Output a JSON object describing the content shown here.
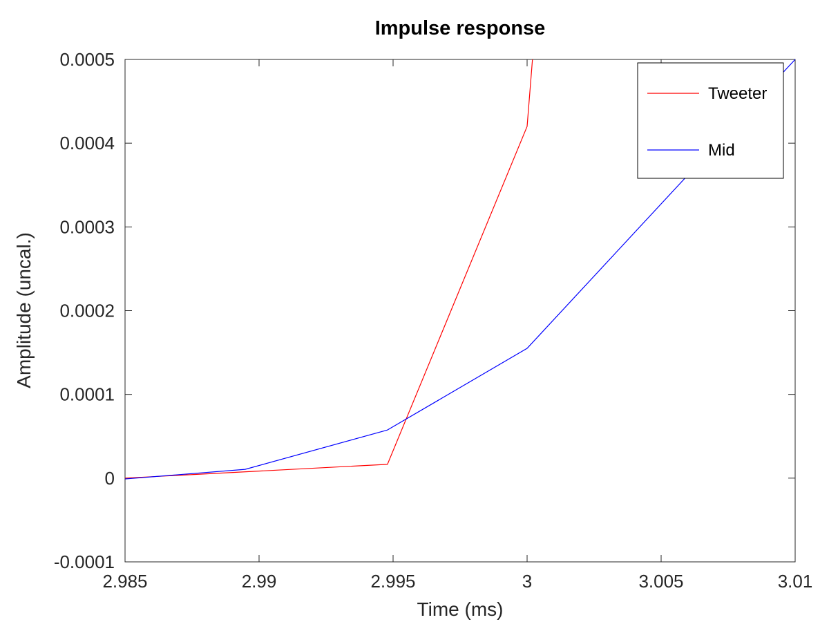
{
  "chart_data": {
    "type": "line",
    "title": "Impulse response",
    "xlabel": "Time (ms)",
    "ylabel": "Amplitude (uncal.)",
    "xlim": [
      2.985,
      3.01
    ],
    "ylim": [
      -0.0001,
      0.0005
    ],
    "x_ticks": [
      2.985,
      2.99,
      2.995,
      3,
      3.005,
      3.01
    ],
    "x_tick_labels": [
      "2.985",
      "2.99",
      "2.995",
      "3",
      "3.005",
      "3.01"
    ],
    "y_ticks": [
      -0.0001,
      0,
      0.0001,
      0.0002,
      0.0003,
      0.0004,
      0.0005
    ],
    "y_tick_labels": [
      "-0.0001",
      "0",
      "0.0001",
      "0.0002",
      "0.0003",
      "0.0004",
      "0.0005"
    ],
    "grid": false,
    "legend_position": "top-right",
    "series": [
      {
        "name": "Tweeter",
        "color": "#ff0000",
        "x": [
          2.985,
          2.99479,
          3.0,
          3.0002
        ],
        "y": [
          0.0,
          1.65e-05,
          0.00042,
          0.0005
        ]
      },
      {
        "name": "Mid",
        "color": "#0000ff",
        "x": [
          2.985,
          2.98948,
          2.99479,
          3.0,
          3.01
        ],
        "y": [
          -1e-06,
          1.05e-05,
          5.75e-05,
          0.000155,
          0.0005
        ]
      }
    ]
  }
}
